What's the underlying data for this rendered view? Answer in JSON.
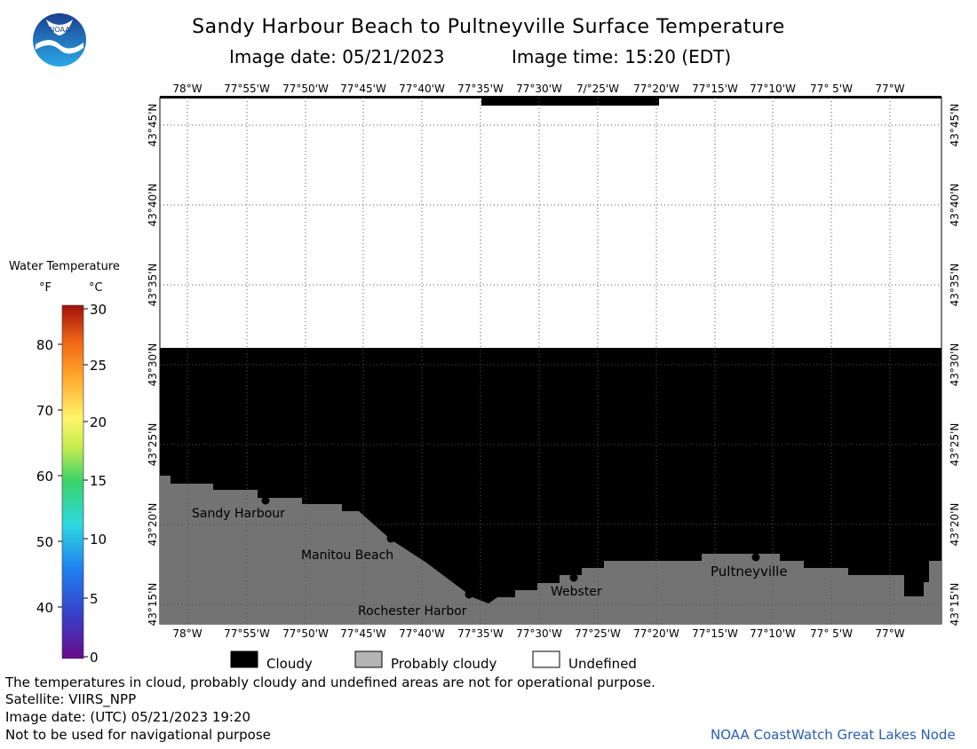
{
  "header": {
    "title": "Sandy Harbour Beach to Pultneyville Surface Temperature",
    "image_date": "Image date: 05/21/2023",
    "image_time": "Image time: 15:20 (EDT)",
    "logo_text": "NOAA"
  },
  "map": {
    "top_lon_labels": [
      "78°W",
      "77°55'W",
      "77°50'W",
      "77°45'W",
      "77°40'W",
      "77°35'W",
      "77°30'W",
      "7/°25'W",
      "77°20'W",
      "77°15'W",
      "77°10'W",
      "77° 5'W",
      "77°W"
    ],
    "bottom_lon_labels": [
      "78°W",
      "77°55'W",
      "77°50'W",
      "77°45'W",
      "77°40'W",
      "77°35'W",
      "77°30'W",
      "77°25'W",
      "77°20'W",
      "77°15'W",
      "77°10'W",
      "77° 5'W",
      "77°W"
    ],
    "lat_labels": [
      "43°45'N",
      "43°40'N",
      "43°35'N",
      "43°30'N",
      "43°25'N",
      "43°20'N",
      "43°15'N"
    ],
    "places": [
      {
        "name": "Sandy Harbour"
      },
      {
        "name": "Manitou Beach"
      },
      {
        "name": "Rochester Harbor"
      },
      {
        "name": "Webster"
      },
      {
        "name": "Pultneyville"
      }
    ],
    "colors": {
      "cloudy": "#000000",
      "probably_cloudy": "#737373",
      "undefined": "#ffffff"
    }
  },
  "colorbar": {
    "title": "Water Temperature",
    "unit_f": "°F",
    "unit_c": "°C",
    "f_ticks": [
      "80",
      "70",
      "60",
      "50",
      "40"
    ],
    "c_ticks": [
      "30",
      "25",
      "20",
      "15",
      "10",
      "5",
      "0"
    ]
  },
  "legend": {
    "cloudy": "Cloudy",
    "probably_cloudy": "Probably cloudy",
    "undefined": "Undefined"
  },
  "footer": {
    "note": "The temperatures in cloud, probably cloudy and undefined areas are not for operational purpose.",
    "satellite": "Satellite: VIIRS_NPP",
    "utc_date": "Image date: (UTC) 05/21/2023  19:20",
    "nav": "Not to be used for navigational purpose",
    "credit": "NOAA CoastWatch Great Lakes Node"
  }
}
